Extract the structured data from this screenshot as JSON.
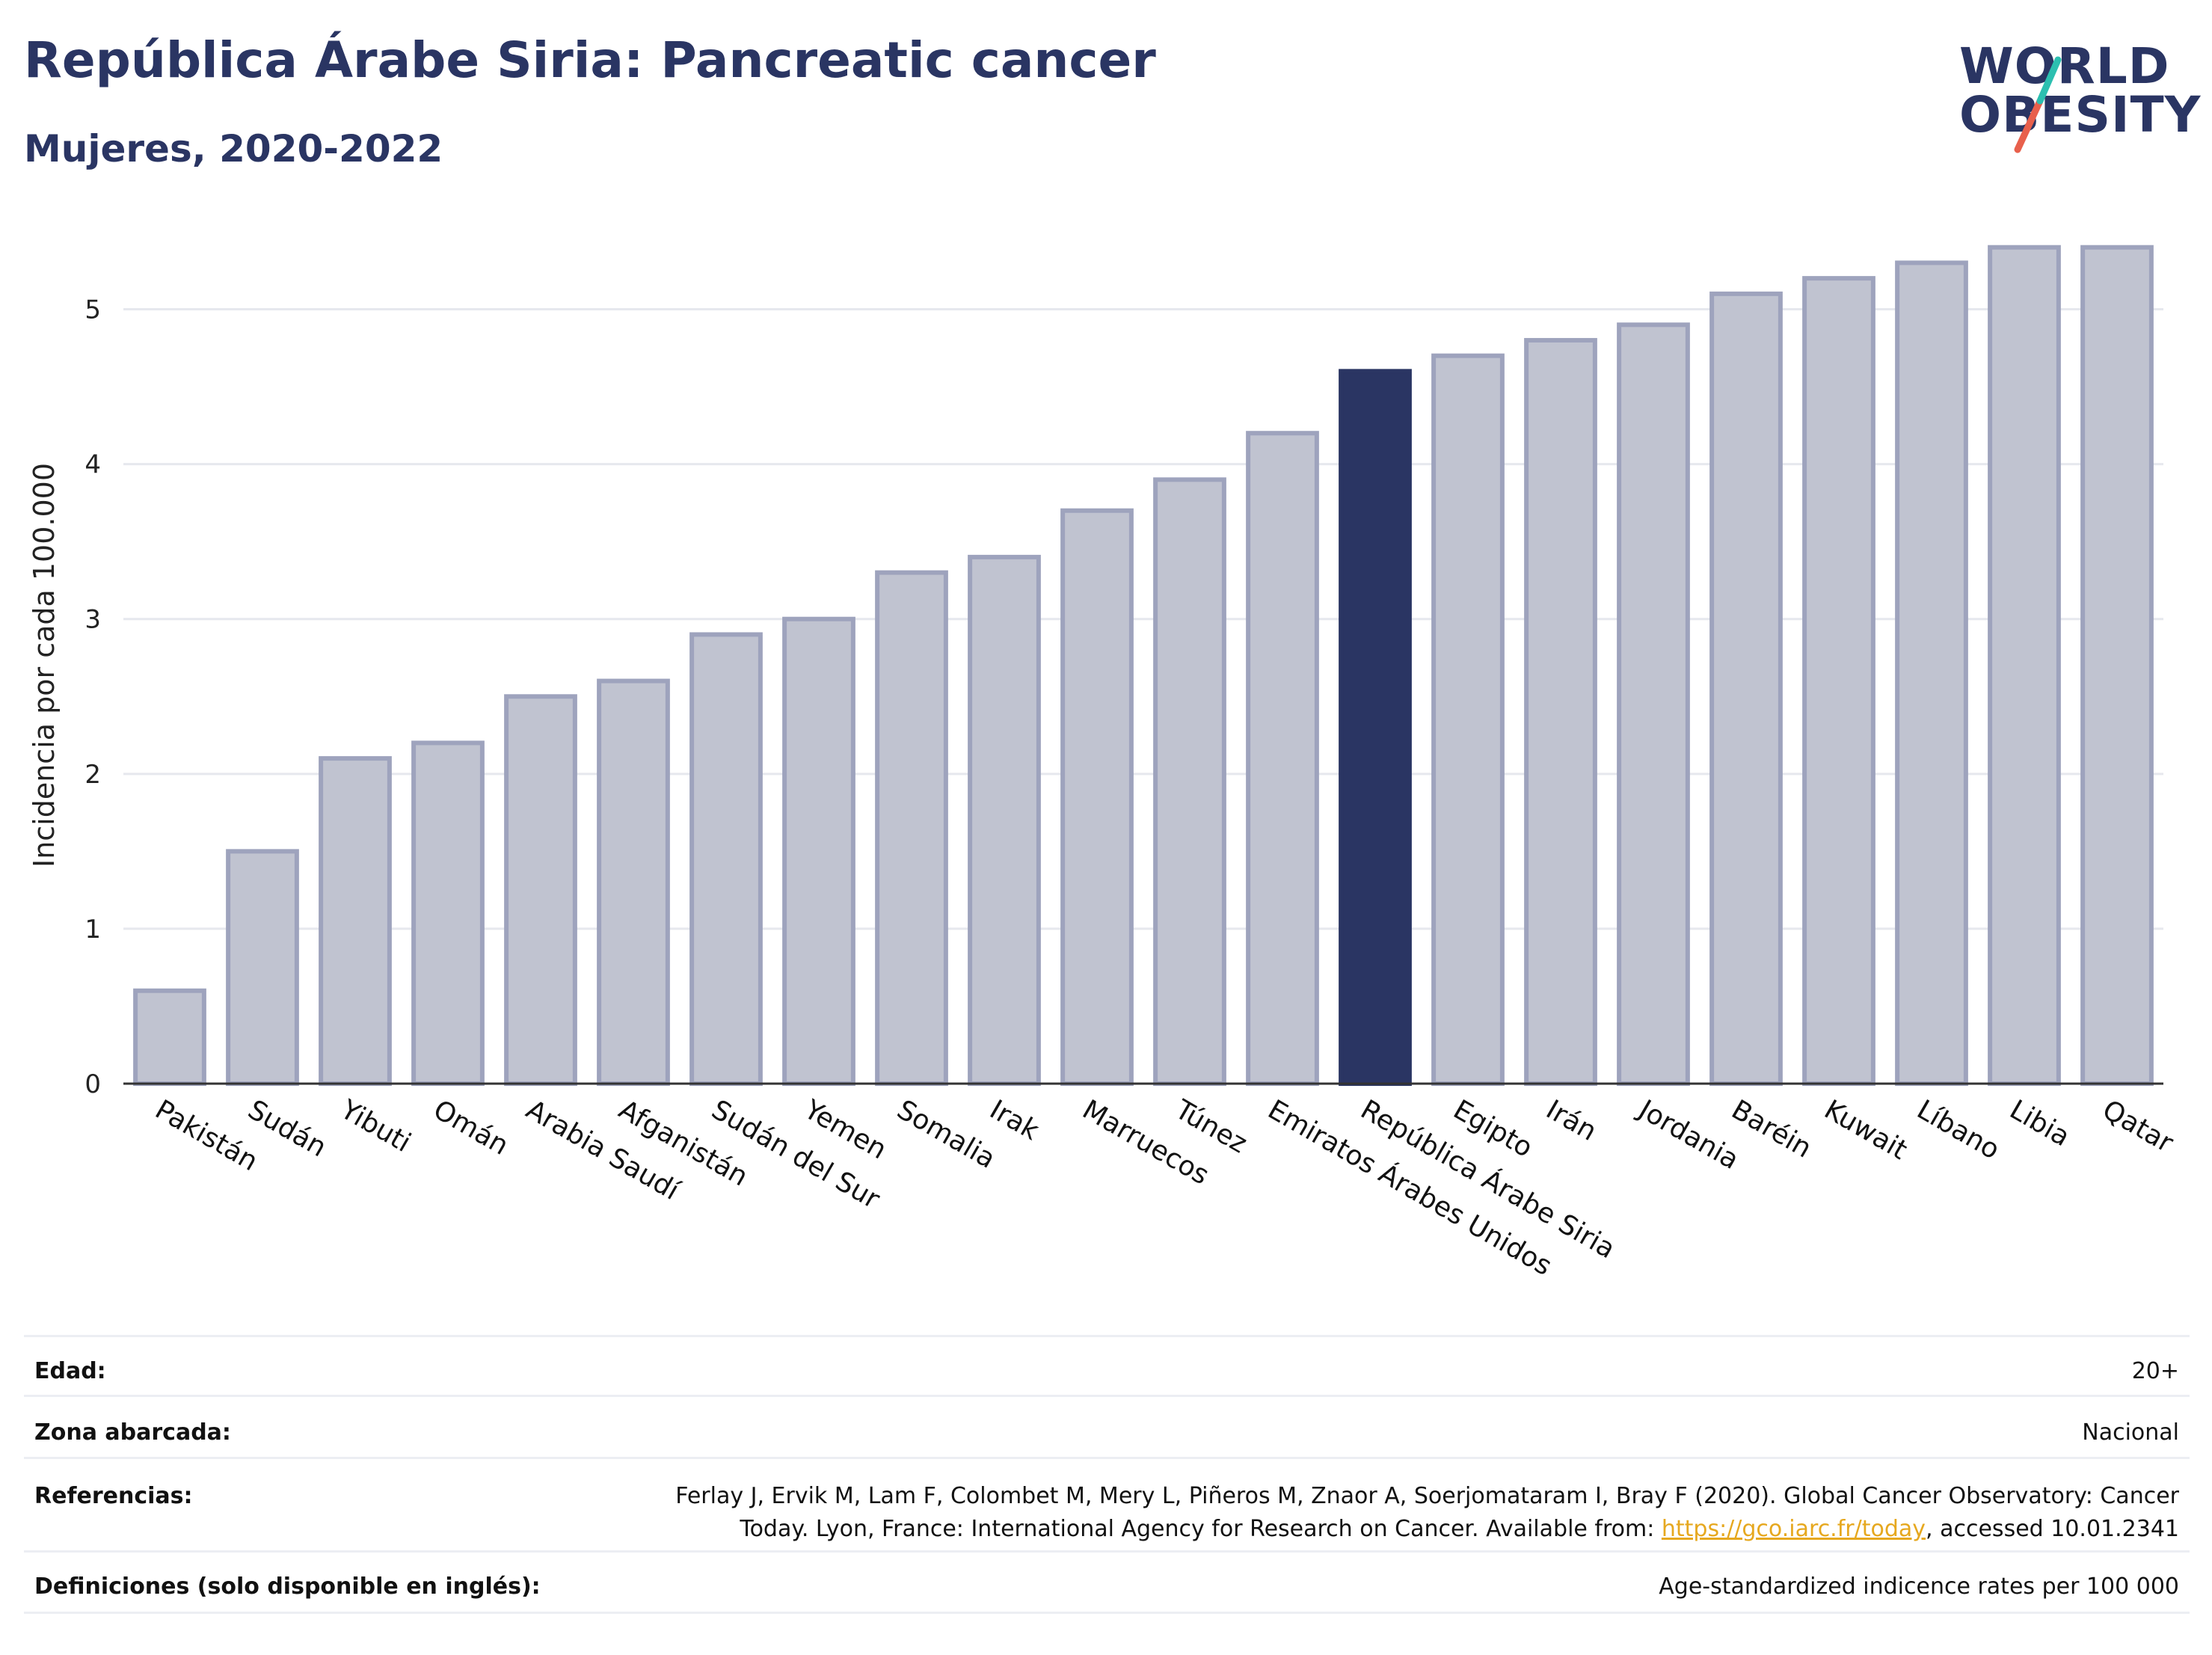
{
  "header": {
    "title": "República Árabe Siria: Pancreatic cancer",
    "subtitle": "Mujeres, 2020-2022"
  },
  "logo": {
    "line1": "WORLD",
    "line2": "OBESITY",
    "colors": {
      "text": "#2a3563",
      "slash_top": "#2cbfb0",
      "slash_bottom": "#e8604c"
    }
  },
  "chart_data": {
    "type": "bar",
    "ylabel": "Incidencia por cada 100.000",
    "ylim": [
      0,
      5.5
    ],
    "yticks": [
      0,
      1,
      2,
      3,
      4,
      5
    ],
    "grid": true,
    "highlight": "República Árabe Siria",
    "colors": {
      "bar": "#c0c3d0",
      "bar_edge": "#9ea3bd",
      "highlight": "#2a3563",
      "grid": "#e6e8ee"
    },
    "categories": [
      "Pakistán",
      "Sudán",
      "Yibuti",
      "Omán",
      "Arabia Saudí",
      "Afganistán",
      "Sudán del Sur",
      "Yemen",
      "Somalia",
      "Irak",
      "Marruecos",
      "Túnez",
      "Emiratos Árabes Unidos",
      "República Árabe Siria",
      "Egipto",
      "Irán",
      "Jordania",
      "Baréin",
      "Kuwait",
      "Líbano",
      "Libia",
      "Qatar"
    ],
    "values": [
      0.6,
      1.5,
      2.1,
      2.2,
      2.5,
      2.6,
      2.9,
      3.0,
      3.3,
      3.4,
      3.7,
      3.9,
      4.2,
      4.6,
      4.7,
      4.8,
      4.9,
      5.1,
      5.2,
      5.3,
      5.4,
      5.4
    ]
  },
  "meta": {
    "age_label": "Edad:",
    "age_value": "20+",
    "area_label": "Zona abarcada:",
    "area_value": "Nacional",
    "ref_label": "Referencias:",
    "ref_line1": "Ferlay J, Ervik M, Lam F, Colombet M, Mery L, Piñeros M, Znaor A, Soerjomataram I, Bray F (2020). Global Cancer Observatory: Cancer",
    "ref_line2_pre": "Today. Lyon, France: International Agency for Research on Cancer. Available from:",
    "ref_link": "https://gco.iarc.fr/today",
    "ref_line2_post": ", accessed 10.01.2341",
    "def_label": "Definiciones (solo disponible en inglés):",
    "def_value": "Age-standardized indicence rates per 100 000"
  }
}
